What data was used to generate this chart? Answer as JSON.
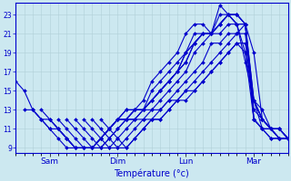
{
  "title": "",
  "xlabel": "Température (°c)",
  "ylabel": "",
  "background_color": "#cce8f0",
  "plot_bg_color": "#cce8f0",
  "line_color": "#0000cc",
  "linewidth": 0.8,
  "ylim": [
    8.5,
    24.2
  ],
  "yticks": [
    9,
    11,
    13,
    15,
    17,
    19,
    21,
    23
  ],
  "grid_color": "#b0cfd8",
  "day_labels": [
    "Sam",
    "Dim",
    "Lun",
    "Mar"
  ],
  "day_positions": [
    24,
    72,
    120,
    168
  ],
  "xlim": [
    0,
    192
  ],
  "series": [
    {
      "x": [
        0,
        6,
        12,
        18,
        24,
        30,
        36,
        42,
        48,
        54,
        60,
        66,
        72,
        78,
        84,
        90,
        96,
        102,
        108,
        114,
        120,
        126,
        132,
        138,
        144,
        150,
        156,
        162,
        168,
        174,
        180,
        186,
        192
      ],
      "y": [
        16,
        15,
        13,
        12,
        11,
        10,
        9,
        9,
        9,
        9,
        10,
        11,
        12,
        13,
        13,
        14,
        16,
        17,
        18,
        19,
        21,
        22,
        22,
        21,
        24,
        23,
        22,
        18,
        14,
        11,
        10,
        10,
        10
      ]
    },
    {
      "x": [
        6,
        12,
        18,
        24,
        30,
        36,
        42,
        48,
        54,
        60,
        66,
        72,
        78,
        84,
        90,
        96,
        102,
        108,
        114,
        120,
        126,
        132,
        138,
        144,
        150,
        156,
        162,
        168,
        174,
        180,
        186,
        192
      ],
      "y": [
        13,
        13,
        12,
        11,
        11,
        10,
        9,
        9,
        9,
        10,
        11,
        12,
        13,
        13,
        13,
        15,
        16,
        17,
        18,
        19,
        21,
        21,
        21,
        23,
        23,
        22,
        19,
        12,
        11,
        10,
        10,
        10
      ]
    },
    {
      "x": [
        12,
        18,
        24,
        30,
        36,
        42,
        48,
        54,
        60,
        66,
        72,
        78,
        84,
        90,
        96,
        102,
        108,
        114,
        120,
        126,
        132,
        138,
        144,
        150,
        156,
        162,
        168,
        174,
        180,
        186,
        192
      ],
      "y": [
        13,
        12,
        12,
        11,
        10,
        9,
        9,
        9,
        10,
        11,
        12,
        12,
        13,
        13,
        14,
        15,
        16,
        17,
        19,
        20,
        21,
        21,
        22,
        23,
        23,
        22,
        19,
        12,
        11,
        10,
        10
      ]
    },
    {
      "x": [
        18,
        24,
        30,
        36,
        42,
        48,
        54,
        60,
        66,
        72,
        78,
        84,
        90,
        96,
        102,
        108,
        114,
        120,
        126,
        132,
        138,
        144,
        150,
        156,
        162,
        168,
        174,
        180,
        186,
        192
      ],
      "y": [
        13,
        12,
        11,
        10,
        9,
        9,
        9,
        10,
        11,
        12,
        12,
        13,
        13,
        14,
        15,
        16,
        17,
        19,
        20,
        21,
        21,
        22,
        23,
        23,
        22,
        12,
        11,
        11,
        10,
        10
      ]
    },
    {
      "x": [
        24,
        30,
        36,
        42,
        48,
        54,
        60,
        66,
        72,
        78,
        84,
        90,
        96,
        102,
        108,
        114,
        120,
        126,
        132,
        138,
        144,
        150,
        156,
        162,
        168,
        174,
        180,
        186,
        192
      ],
      "y": [
        12,
        11,
        10,
        9,
        9,
        9,
        10,
        11,
        12,
        12,
        13,
        13,
        14,
        15,
        16,
        17,
        18,
        20,
        21,
        21,
        22,
        23,
        23,
        22,
        12,
        11,
        11,
        10,
        10
      ]
    },
    {
      "x": [
        30,
        36,
        42,
        48,
        54,
        60,
        66,
        72,
        78,
        84,
        90,
        96,
        102,
        108,
        114,
        120,
        126,
        132,
        138,
        144,
        150,
        156,
        162,
        168,
        174,
        180,
        186,
        192
      ],
      "y": [
        12,
        11,
        10,
        9,
        9,
        9,
        10,
        11,
        12,
        12,
        13,
        14,
        15,
        16,
        17,
        18,
        20,
        21,
        21,
        22,
        23,
        22,
        22,
        12,
        11,
        11,
        10,
        10
      ]
    },
    {
      "x": [
        36,
        42,
        48,
        54,
        60,
        66,
        72,
        78,
        84,
        90,
        96,
        102,
        108,
        114,
        120,
        126,
        132,
        138,
        144,
        150,
        156,
        162,
        168,
        174,
        180,
        186,
        192
      ],
      "y": [
        12,
        11,
        10,
        9,
        9,
        10,
        11,
        12,
        12,
        13,
        13,
        14,
        15,
        16,
        17,
        19,
        20,
        21,
        21,
        22,
        22,
        22,
        14,
        12,
        11,
        11,
        10
      ]
    },
    {
      "x": [
        42,
        48,
        54,
        60,
        66,
        72,
        78,
        84,
        90,
        96,
        102,
        108,
        114,
        120,
        126,
        132,
        138,
        144,
        150,
        156,
        162,
        168,
        174,
        180,
        186,
        192
      ],
      "y": [
        12,
        11,
        10,
        9,
        9,
        10,
        11,
        12,
        12,
        13,
        13,
        14,
        15,
        16,
        17,
        18,
        20,
        20,
        21,
        21,
        22,
        14,
        12,
        11,
        11,
        10
      ]
    },
    {
      "x": [
        48,
        54,
        60,
        66,
        72,
        78,
        84,
        90,
        96,
        102,
        108,
        114,
        120,
        126,
        132,
        138,
        144,
        150,
        156,
        162,
        168,
        174,
        180,
        186,
        192
      ],
      "y": [
        12,
        11,
        10,
        9,
        9,
        10,
        11,
        12,
        12,
        13,
        14,
        14,
        15,
        16,
        17,
        18,
        19,
        20,
        21,
        21,
        13,
        12,
        11,
        11,
        10
      ]
    },
    {
      "x": [
        54,
        60,
        66,
        72,
        78,
        84,
        90,
        96,
        102,
        108,
        114,
        120,
        126,
        132,
        138,
        144,
        150,
        156,
        162,
        168,
        174,
        180,
        186,
        192
      ],
      "y": [
        12,
        11,
        10,
        9,
        9,
        10,
        11,
        12,
        12,
        13,
        14,
        14,
        15,
        16,
        17,
        18,
        19,
        20,
        20,
        14,
        13,
        11,
        11,
        10
      ]
    },
    {
      "x": [
        60,
        66,
        72,
        78,
        84,
        90,
        96,
        102,
        108,
        114,
        120,
        126,
        132,
        138,
        144,
        150,
        156,
        162,
        168,
        174,
        180,
        186,
        192
      ],
      "y": [
        12,
        11,
        10,
        9,
        10,
        11,
        12,
        12,
        13,
        14,
        15,
        15,
        16,
        17,
        18,
        19,
        20,
        19,
        14,
        12,
        11,
        11,
        10
      ]
    }
  ]
}
